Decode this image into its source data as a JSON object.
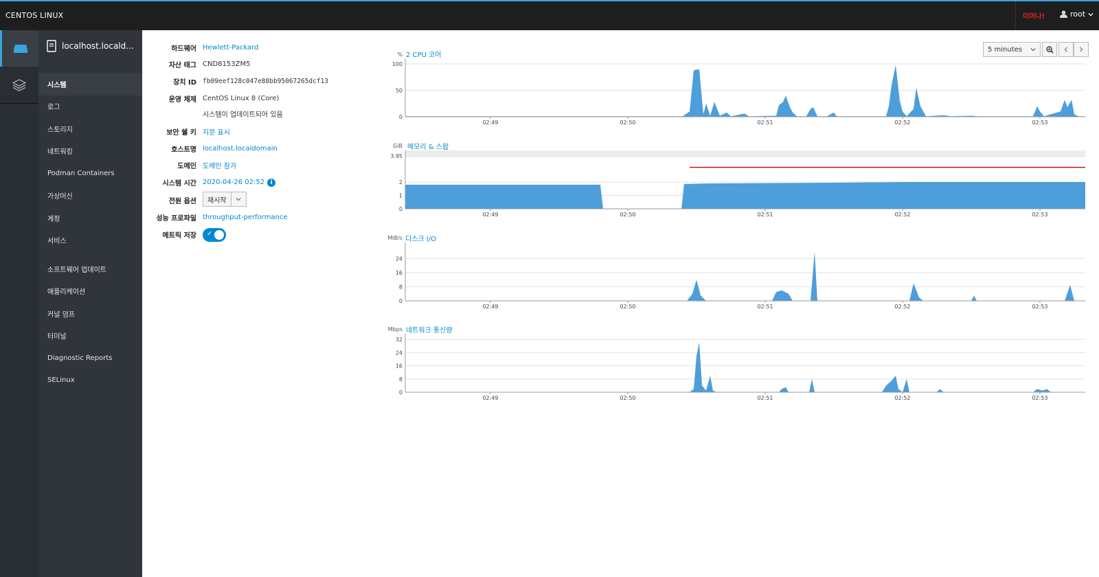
{
  "topbar": {
    "brand": "CENTOS LINUX",
    "alert": "이머나!",
    "user": "root"
  },
  "rail": {
    "items": [
      {
        "icon": "server-icon",
        "active": true
      },
      {
        "icon": "layers-icon",
        "active": false
      }
    ]
  },
  "nav": {
    "host": "localhost.locald...",
    "items": [
      {
        "label": "시스템",
        "active": true
      },
      {
        "label": "로그"
      },
      {
        "label": "스토리지"
      },
      {
        "label": "네트워킹"
      },
      {
        "label": "Podman Containers"
      },
      {
        "label": "가상머신"
      },
      {
        "label": "계정"
      },
      {
        "label": "서비스"
      },
      {
        "label": "소프트웨어 업데이트"
      },
      {
        "label": "애플리케이션"
      },
      {
        "label": "커널 덤프"
      },
      {
        "label": "터미널"
      },
      {
        "label": "Diagnostic Reports"
      },
      {
        "label": "SELinux"
      }
    ]
  },
  "info": {
    "hardware_label": "하드웨어",
    "hardware": "Hewlett-Packard",
    "asset_label": "자산 태그",
    "asset": "CND8153ZM5",
    "machine_label": "장치 ID",
    "machine": "fb09eef128c047e88bb95067265dcf13",
    "os_label": "운영 체제",
    "os": "CentOS Linux 8 (Core)",
    "os_status": "시스템이 업데이트되어 있음",
    "ssh_label": "보안 쉘 키",
    "ssh": "지문 표시",
    "hostname_label": "호스트명",
    "hostname": "localhost.localdomain",
    "domain_label": "도메인",
    "domain": "도메인 참가",
    "time_label": "시스템 시간",
    "time": "2020-04-26 02:52",
    "power_label": "전원 옵션",
    "power": "재시작",
    "profile_label": "성능 프로파일",
    "profile": "throughput-performance",
    "metrics_label": "메트릭 저장",
    "metrics_enabled": true
  },
  "controls": {
    "range": "5 minutes"
  },
  "chart_data": [
    {
      "type": "area",
      "title": "2 CPU 코어",
      "unit": "%",
      "x_ticks": [
        "02:49",
        "02:50",
        "02:51",
        "02:52",
        "02:53"
      ],
      "y_ticks": [
        0,
        50,
        100
      ],
      "ylim": [
        0,
        100
      ],
      "xlim": [
        48.38,
        53.33
      ],
      "series": [
        {
          "color": "#4d9edb",
          "values": [
            [
              48.38,
              1
            ],
            [
              50.3,
              1
            ],
            [
              50.4,
              1
            ],
            [
              50.45,
              10
            ],
            [
              50.48,
              88
            ],
            [
              50.52,
              90
            ],
            [
              50.55,
              5
            ],
            [
              50.57,
              25
            ],
            [
              50.6,
              2
            ],
            [
              50.63,
              28
            ],
            [
              50.67,
              2
            ],
            [
              50.72,
              8
            ],
            [
              50.75,
              1
            ],
            [
              50.85,
              6
            ],
            [
              50.88,
              1
            ],
            [
              51.08,
              2
            ],
            [
              51.1,
              22
            ],
            [
              51.13,
              28
            ],
            [
              51.15,
              40
            ],
            [
              51.18,
              18
            ],
            [
              51.2,
              8
            ],
            [
              51.23,
              1
            ],
            [
              51.3,
              1
            ],
            [
              51.33,
              15
            ],
            [
              51.35,
              18
            ],
            [
              51.38,
              1
            ],
            [
              51.45,
              1
            ],
            [
              51.5,
              8
            ],
            [
              51.52,
              1
            ],
            [
              51.88,
              1
            ],
            [
              51.9,
              20
            ],
            [
              51.92,
              60
            ],
            [
              51.95,
              98
            ],
            [
              51.98,
              30
            ],
            [
              52.0,
              10
            ],
            [
              52.03,
              1
            ],
            [
              52.08,
              15
            ],
            [
              52.1,
              55
            ],
            [
              52.13,
              20
            ],
            [
              52.17,
              1
            ],
            [
              52.3,
              3
            ],
            [
              52.35,
              1
            ],
            [
              52.5,
              2
            ],
            [
              52.55,
              1
            ],
            [
              52.95,
              1
            ],
            [
              52.98,
              20
            ],
            [
              53.0,
              10
            ],
            [
              53.03,
              1
            ],
            [
              53.15,
              10
            ],
            [
              53.18,
              32
            ],
            [
              53.2,
              18
            ],
            [
              53.23,
              32
            ],
            [
              53.25,
              5
            ],
            [
              53.28,
              1
            ],
            [
              53.33,
              1
            ]
          ]
        }
      ]
    },
    {
      "type": "area",
      "title": "메모리 & 스왑",
      "unit": "GiB",
      "x_ticks": [
        "02:49",
        "02:50",
        "02:51",
        "02:52",
        "02:53"
      ],
      "y_ticks": [
        0,
        1,
        2,
        3.95
      ],
      "ylim": [
        0,
        3.95
      ],
      "xlim": [
        48.38,
        53.33
      ],
      "series": [
        {
          "color": "#4d9edb",
          "values": [
            [
              48.38,
              1.8
            ],
            [
              49.8,
              1.8
            ],
            [
              49.82,
              0
            ],
            [
              50.39,
              0
            ],
            [
              50.41,
              1.85
            ],
            [
              50.6,
              1.9
            ],
            [
              51.5,
              1.95
            ],
            [
              52.0,
              2.0
            ],
            [
              52.6,
              2.0
            ],
            [
              53.33,
              2.0
            ]
          ]
        }
      ],
      "swap_line": {
        "color": "#c9190b",
        "value": 3.1,
        "from": 50.45
      }
    },
    {
      "type": "area",
      "title": "디스크 I/O",
      "unit": "MiB/s",
      "x_ticks": [
        "02:49",
        "02:50",
        "02:51",
        "02:52",
        "02:53"
      ],
      "y_ticks": [
        0,
        8,
        16,
        24
      ],
      "ylim": [
        0,
        30
      ],
      "xlim": [
        48.38,
        53.33
      ],
      "series": [
        {
          "color": "#4d9edb",
          "values": [
            [
              48.38,
              0
            ],
            [
              50.43,
              0
            ],
            [
              50.47,
              4
            ],
            [
              50.5,
              12
            ],
            [
              50.53,
              3
            ],
            [
              50.57,
              0
            ],
            [
              51.05,
              0
            ],
            [
              51.08,
              5
            ],
            [
              51.12,
              6
            ],
            [
              51.17,
              4
            ],
            [
              51.2,
              0
            ],
            [
              51.33,
              0
            ],
            [
              51.36,
              28
            ],
            [
              51.38,
              0
            ],
            [
              52.05,
              0
            ],
            [
              52.08,
              10
            ],
            [
              52.12,
              2
            ],
            [
              52.15,
              0
            ],
            [
              52.5,
              0
            ],
            [
              52.52,
              3
            ],
            [
              52.54,
              0
            ],
            [
              53.18,
              0
            ],
            [
              53.22,
              9
            ],
            [
              53.25,
              0
            ],
            [
              53.33,
              0
            ]
          ]
        }
      ]
    },
    {
      "type": "area",
      "title": "네트워크 통신량",
      "unit": "Mbps",
      "x_ticks": [
        "02:49",
        "02:50",
        "02:51",
        "02:52",
        "02:53"
      ],
      "y_ticks": [
        0,
        8,
        16,
        24,
        32
      ],
      "ylim": [
        0,
        32
      ],
      "xlim": [
        48.38,
        53.33
      ],
      "series": [
        {
          "color": "#4d9edb",
          "values": [
            [
              48.38,
              0
            ],
            [
              50.45,
              0
            ],
            [
              50.48,
              2
            ],
            [
              50.5,
              22
            ],
            [
              50.52,
              30
            ],
            [
              50.54,
              4
            ],
            [
              50.57,
              1
            ],
            [
              50.6,
              10
            ],
            [
              50.62,
              1
            ],
            [
              50.65,
              0
            ],
            [
              51.1,
              0
            ],
            [
              51.12,
              2
            ],
            [
              51.15,
              3
            ],
            [
              51.17,
              0
            ],
            [
              51.32,
              0
            ],
            [
              51.34,
              8
            ],
            [
              51.36,
              0
            ],
            [
              51.85,
              0
            ],
            [
              51.88,
              4
            ],
            [
              51.92,
              7
            ],
            [
              51.95,
              10
            ],
            [
              51.97,
              2
            ],
            [
              52.0,
              0
            ],
            [
              52.03,
              8
            ],
            [
              52.05,
              0
            ],
            [
              52.25,
              0
            ],
            [
              52.27,
              2
            ],
            [
              52.3,
              0
            ],
            [
              52.95,
              0
            ],
            [
              52.98,
              2
            ],
            [
              53.02,
              1
            ],
            [
              53.05,
              2
            ],
            [
              53.08,
              0
            ],
            [
              53.33,
              0
            ]
          ]
        }
      ]
    }
  ]
}
